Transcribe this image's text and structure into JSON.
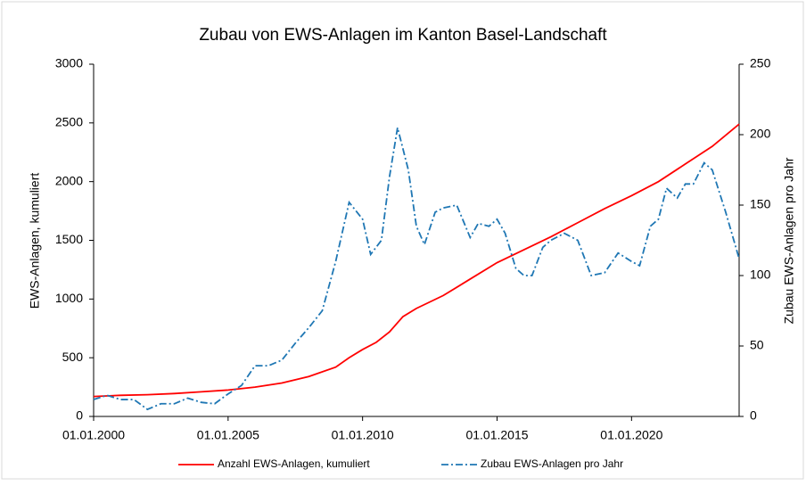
{
  "chart_data": {
    "type": "line",
    "title": "Zubau von EWS-Anlagen im Kanton Basel-Landschaft",
    "ylabel": "EWS-Anlagen, kumuliert",
    "y2label": "Zubau EWS-Anlagen pro Jahr",
    "xlim": [
      2000,
      2024
    ],
    "xticks": [
      {
        "value": 2000,
        "label": "01.01.2000"
      },
      {
        "value": 2005,
        "label": "01.01.2005"
      },
      {
        "value": 2010,
        "label": "01.01.2010"
      },
      {
        "value": 2015,
        "label": "01.01.2015"
      },
      {
        "value": 2020,
        "label": "01.01.2020"
      }
    ],
    "ylim": [
      0,
      3000
    ],
    "yticks": [
      0,
      500,
      1000,
      1500,
      2000,
      2500,
      3000
    ],
    "y2lim": [
      0,
      250
    ],
    "y2ticks": [
      0,
      50,
      100,
      150,
      200,
      250
    ],
    "legend": "bottom",
    "series": [
      {
        "name": "Anzahl EWS-Anlagen, kumuliert",
        "color": "#ff0000",
        "dash": "solid",
        "x": [
          2000,
          2001,
          2002,
          2003,
          2004,
          2005,
          2006,
          2007,
          2008,
          2009,
          2009.5,
          2010,
          2010.5,
          2011,
          2011.5,
          2012,
          2013,
          2014,
          2015,
          2016,
          2017,
          2018,
          2019,
          2020,
          2021,
          2022,
          2023,
          2024
        ],
        "values": [
          170,
          180,
          185,
          195,
          210,
          225,
          250,
          285,
          340,
          420,
          500,
          570,
          630,
          720,
          850,
          920,
          1030,
          1170,
          1310,
          1420,
          1530,
          1650,
          1770,
          1880,
          2000,
          2150,
          2300,
          2490
        ]
      },
      {
        "name": "Zubau EWS-Anlagen pro Jahr",
        "color": "#1f77b4",
        "dash": "dashdot",
        "axis": "y2",
        "x": [
          2000,
          2000.5,
          2001,
          2001.5,
          2002,
          2002.5,
          2003,
          2003.5,
          2004,
          2004.5,
          2005,
          2005.5,
          2006,
          2006.5,
          2007,
          2007.5,
          2008,
          2008.5,
          2009,
          2009.5,
          2010,
          2010.3,
          2010.7,
          2011,
          2011.3,
          2011.7,
          2012,
          2012.3,
          2012.7,
          2013,
          2013.5,
          2014,
          2014.3,
          2014.7,
          2015,
          2015.3,
          2015.7,
          2016,
          2016.3,
          2016.7,
          2017,
          2017.5,
          2018,
          2018.5,
          2019,
          2019.5,
          2020,
          2020.3,
          2020.7,
          2021,
          2021.3,
          2021.7,
          2022,
          2022.3,
          2022.7,
          2023,
          2023.5,
          2024
        ],
        "values": [
          12,
          15,
          12,
          12,
          5,
          9,
          9,
          13,
          10,
          9,
          16,
          22,
          36,
          36,
          40,
          52,
          63,
          75,
          110,
          152,
          140,
          115,
          125,
          170,
          205,
          175,
          135,
          122,
          145,
          148,
          150,
          127,
          137,
          135,
          140,
          130,
          105,
          100,
          100,
          120,
          125,
          130,
          125,
          100,
          102,
          116,
          110,
          107,
          135,
          140,
          162,
          155,
          165,
          165,
          180,
          175,
          145,
          112
        ]
      }
    ]
  }
}
